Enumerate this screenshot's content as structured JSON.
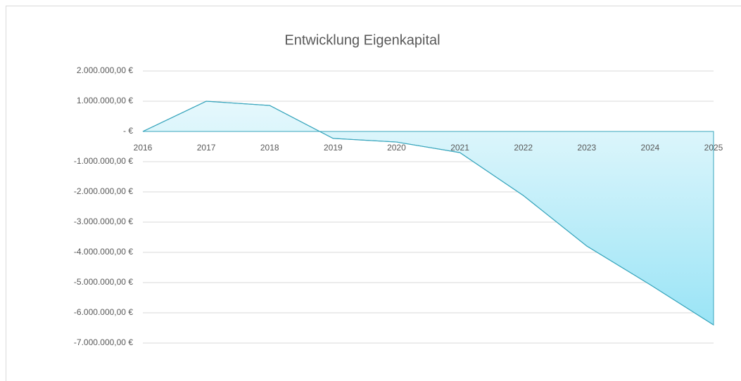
{
  "chart_data": {
    "type": "area",
    "title": "Entwicklung Eigenkapital",
    "categories": [
      "2016",
      "2017",
      "2018",
      "2019",
      "2020",
      "2021",
      "2022",
      "2023",
      "2024",
      "2025"
    ],
    "series": [
      {
        "name": "Eigenkapital",
        "color": "#3aa6bd",
        "values": [
          0,
          1000000,
          860000,
          -230000,
          -350000,
          -700000,
          -2120000,
          -3790000,
          -5070000,
          -6400000
        ]
      }
    ],
    "ylim": [
      -7000000,
      2000000
    ],
    "yticks": [
      {
        "value": -7000000,
        "label": "-7.000.000,00 €"
      },
      {
        "value": -6000000,
        "label": "-6.000.000,00 €"
      },
      {
        "value": -5000000,
        "label": "-5.000.000,00 €"
      },
      {
        "value": -4000000,
        "label": "-4.000.000,00 €"
      },
      {
        "value": -3000000,
        "label": "-3.000.000,00 €"
      },
      {
        "value": -2000000,
        "label": "-2.000.000,00 €"
      },
      {
        "value": -1000000,
        "label": "-1.000.000,00 €"
      },
      {
        "value": 0,
        "label": "-   €"
      },
      {
        "value": 1000000,
        "label": "1.000.000,00 €"
      },
      {
        "value": 2000000,
        "label": "2.000.000,00 €"
      }
    ],
    "grid": true
  }
}
